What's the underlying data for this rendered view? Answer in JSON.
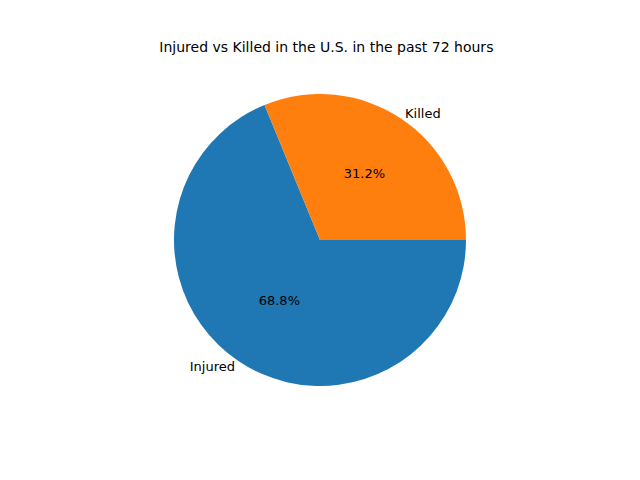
{
  "chart_data": {
    "type": "pie",
    "title": "Injured vs Killed in the U.S. in the past 72 hours",
    "categories": [
      "Injured",
      "Killed"
    ],
    "values": [
      68.8,
      31.2
    ],
    "value_labels": [
      "68.8%",
      "31.2%"
    ],
    "colors": [
      "#1f77b4",
      "#ff7f0e"
    ],
    "data_labels": true
  }
}
